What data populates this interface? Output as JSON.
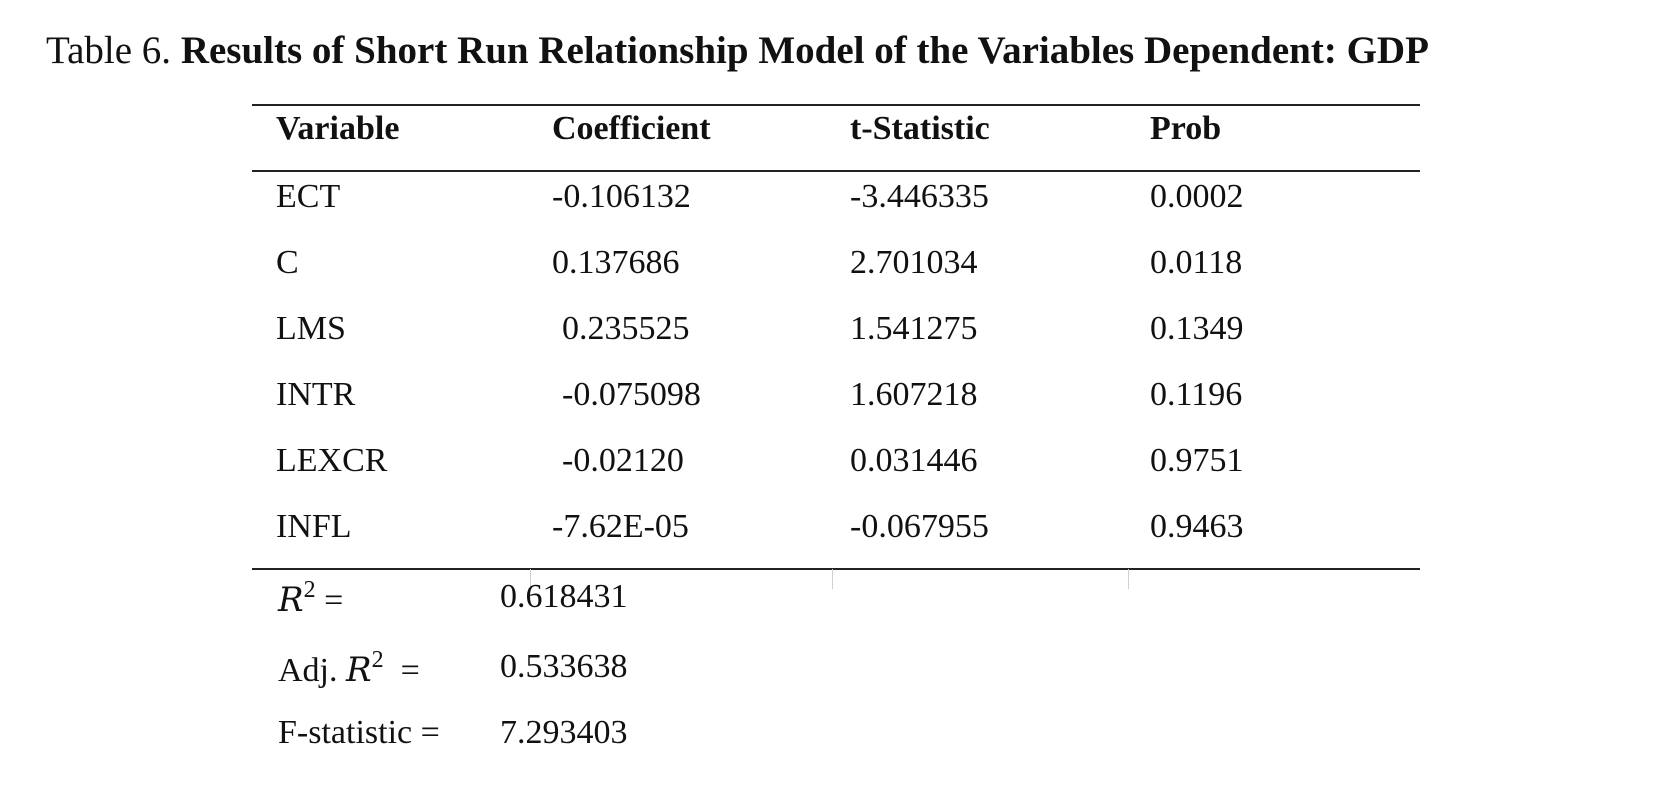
{
  "caption": {
    "label": "Table 6. ",
    "title": "Results of Short Run Relationship Model of the Variables Dependent: GDP"
  },
  "table": {
    "headers": [
      "Variable",
      "Coefficient",
      "t-Statistic",
      "Prob"
    ],
    "rows": [
      [
        "ECT",
        "-0.106132",
        "-3.446335",
        "0.0002"
      ],
      [
        "C",
        "0.137686",
        "2.701034",
        "0.0118"
      ],
      [
        "LMS",
        "0.235525",
        "1.541275",
        "0.1349"
      ],
      [
        "INTR",
        "-0.075098",
        "1.607218",
        "0.1196"
      ],
      [
        "LEXCR",
        "-0.02120",
        "0.031446",
        "0.9751"
      ],
      [
        "INFL",
        "-7.62E-05",
        "-0.067955",
        "0.9463"
      ]
    ]
  },
  "stats": {
    "r2": {
      "label_var": "R",
      "label_sup": "2",
      "label_eq": " =",
      "value": "0.618431"
    },
    "adj_r2": {
      "label_prefix": "Adj. ",
      "label_var": "R",
      "label_sup": "2",
      "label_eq": "  =",
      "value": "0.533638"
    },
    "f_stat": {
      "label": "F-statistic =",
      "value": "7.293403"
    }
  }
}
